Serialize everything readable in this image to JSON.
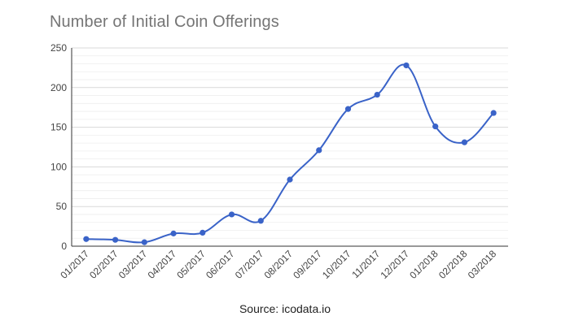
{
  "chart_data": {
    "type": "line",
    "title": "Number of Initial Coin Offerings",
    "source": "Source: icodata.io",
    "xlabel": "",
    "ylabel": "",
    "categories": [
      "01/2017",
      "02/2017",
      "03/2017",
      "04/2017",
      "05/2017",
      "06/2017",
      "07/2017",
      "08/2017",
      "09/2017",
      "10/2017",
      "11/2017",
      "12/2017",
      "01/2018",
      "02/2018",
      "03/2018"
    ],
    "series": [
      {
        "values": [
          9,
          8,
          5,
          16,
          17,
          40,
          32,
          84,
          121,
          173,
          191,
          228,
          151,
          131,
          168
        ]
      }
    ],
    "ylim": [
      0,
      250
    ],
    "yticks": [
      "0",
      "50",
      "100",
      "150",
      "200",
      "250"
    ],
    "grid": true,
    "legend": "none",
    "colors": {
      "line": "#3a63c8",
      "grid_major": "#d9d9d9",
      "grid_minor": "#eeeeee",
      "axis": "#333333"
    }
  }
}
